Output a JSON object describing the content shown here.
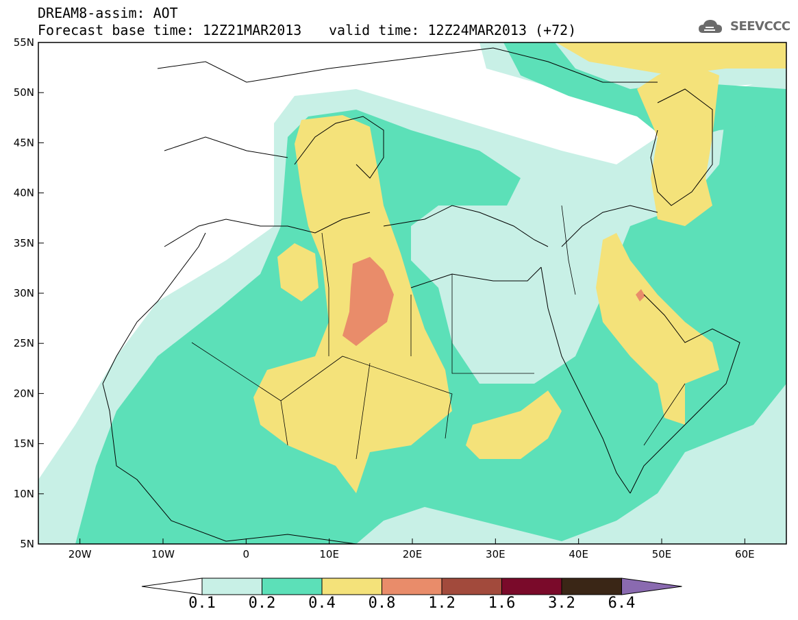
{
  "header": {
    "line1": "DREAM8-assim: AOT",
    "line2": "Forecast base time: 12Z21MAR2013",
    "valid": "valid time: 12Z24MAR2013 (+72)",
    "logo_text": "SEEVCCC"
  },
  "map": {
    "lon_range": [
      -25,
      65
    ],
    "lat_range": [
      5,
      55
    ],
    "lat_labels": [
      "55N",
      "50N",
      "45N",
      "40N",
      "35N",
      "30N",
      "25N",
      "20N",
      "15N",
      "10N",
      "5N"
    ],
    "lon_labels": [
      "20W",
      "10W",
      "0",
      "10E",
      "20E",
      "30E",
      "40E",
      "50E",
      "60E"
    ]
  },
  "colorbar": {
    "labels": [
      "0.1",
      "0.2",
      "0.4",
      "0.8",
      "1.2",
      "1.6",
      "3.2",
      "6.4"
    ],
    "colors": [
      "#c8f0e6",
      "#5ce0b8",
      "#f4e27a",
      "#e98c6a",
      "#a24a3c",
      "#7a0a2a",
      "#3a2616",
      "#8a6ab0"
    ]
  }
}
